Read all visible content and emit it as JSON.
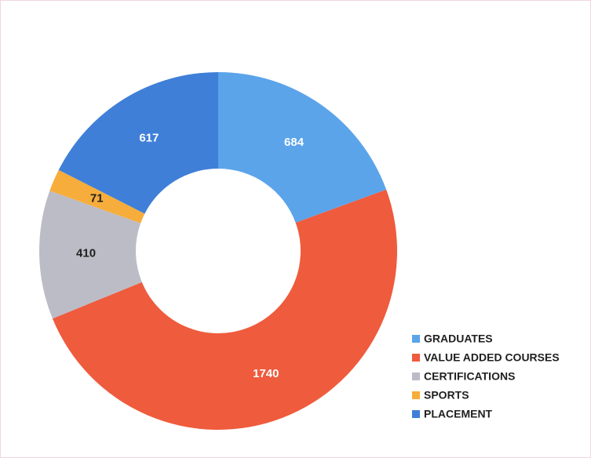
{
  "chart_data": {
    "type": "donut",
    "categories": [
      "GRADUATES",
      "VALUE ADDED COURSES",
      "CERTIFICATIONS",
      "SPORTS",
      "PLACEMENT"
    ],
    "values": [
      684,
      1740,
      410,
      71,
      617
    ],
    "colors": [
      "#5ba4ea",
      "#ef5b3d",
      "#bcbcc6",
      "#f7ad3b",
      "#3f7fd8"
    ],
    "legend": "lower right"
  }
}
